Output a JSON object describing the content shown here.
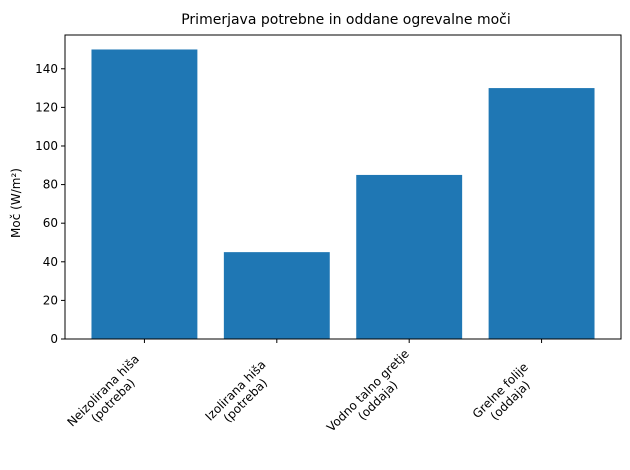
{
  "chart_data": {
    "type": "bar",
    "title": "Primerjava potrebne in oddane ogrevalne moči",
    "xlabel": "",
    "ylabel": "Moč (W/m²)",
    "categories": [
      [
        "Neizolirana hiša",
        "(potreba)"
      ],
      [
        "Izolirana hiša",
        "(potreba)"
      ],
      [
        "Vodno talno gretje",
        "(oddaja)"
      ],
      [
        "Grelne folije",
        "(oddaja)"
      ]
    ],
    "values": [
      150,
      45,
      85,
      130
    ],
    "ylim": [
      0,
      157.5
    ],
    "yticks": [
      0,
      20,
      40,
      60,
      80,
      100,
      120,
      140
    ],
    "grid": false,
    "bar_color": "#1f77b4"
  }
}
